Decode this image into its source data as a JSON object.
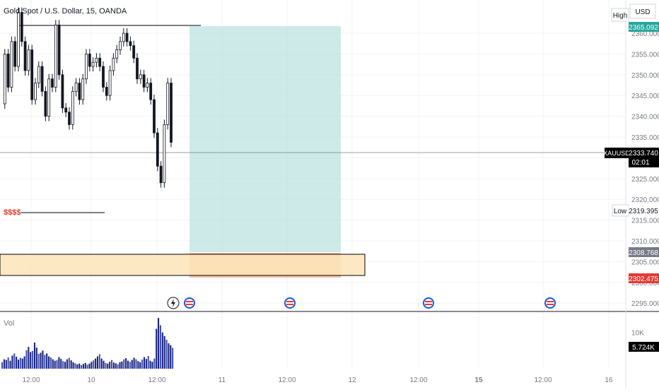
{
  "chart_data": {
    "type": "candlestick",
    "title": "Gold Spot / U.S. Dollar, 15, OANDA",
    "symbol": "XAUUSD",
    "currency": "USD",
    "ylim": [
      2293,
      2368
    ],
    "yticks": [
      "2360.000",
      "2355.000",
      "2350.000",
      "2345.000",
      "2340.000",
      "2335.000",
      "2330.000",
      "2325.000",
      "2320.000",
      "2315.000",
      "2310.000",
      "2305.000",
      "2300.000",
      "2295.000"
    ],
    "xticks": [
      "12:00",
      "10",
      "12:00",
      "11",
      "12:00",
      "12",
      "12:00",
      "15",
      "12:00",
      "16"
    ],
    "bold_xticks": [
      "15"
    ],
    "high": {
      "label": "High",
      "value": "2365.092"
    },
    "low": {
      "label": "Low",
      "value": "2319.395"
    },
    "last": {
      "value": "2333.740",
      "countdown": "02:01"
    },
    "entry_value": "2308.768",
    "stop_value": "2302.475",
    "liquidity_label": "$$$$",
    "price_points": [
      2343,
      2355,
      2347,
      2358,
      2352,
      2365,
      2358,
      2351,
      2356,
      2344,
      2348,
      2352,
      2346,
      2340,
      2349,
      2347,
      2362,
      2350,
      2342,
      2341,
      2338,
      2346,
      2348,
      2344,
      2349,
      2355,
      2352,
      2353,
      2354,
      2352,
      2347,
      2345,
      2351,
      2354,
      2356,
      2358,
      2360,
      2358,
      2357,
      2354,
      2349,
      2350,
      2347,
      2348,
      2344,
      2336,
      2328,
      2324,
      2338,
      2348,
      2333.74
    ],
    "volume": {
      "label": "Vol",
      "ticks": [
        "10K"
      ],
      "last": "5.724K",
      "ylim": [
        0,
        15
      ],
      "values": [
        1.8,
        2.6,
        2.4,
        3.1,
        2.2,
        3.6,
        4.2,
        3.3,
        2.5,
        3.0,
        2.8,
        3.4,
        5.1,
        6.0,
        4.6,
        4.9,
        7.2,
        5.8,
        4.1,
        4.4,
        5.0,
        3.8,
        4.2,
        3.4,
        3.1,
        2.6,
        2.2,
        2.4,
        3.2,
        2.7,
        2.1,
        1.9,
        2.6,
        3.0,
        2.3,
        1.8,
        1.5,
        1.2,
        1.4,
        1.0,
        1.3,
        1.6,
        1.1,
        1.4,
        1.9,
        2.3,
        2.8,
        3.4,
        4.0,
        2.8,
        2.2,
        1.6,
        1.4,
        1.9,
        2.4,
        1.7,
        1.5,
        1.2,
        1.8,
        2.0,
        2.6,
        2.9,
        2.2,
        1.9,
        2.4,
        3.0,
        2.6,
        2.1,
        1.8,
        2.5,
        3.2,
        2.7,
        3.5,
        2.2,
        1.9,
        2.8,
        11.0,
        14.0,
        12.0,
        10.0,
        9.0,
        8.0,
        7.0,
        6.5,
        5.724
      ]
    }
  }
}
